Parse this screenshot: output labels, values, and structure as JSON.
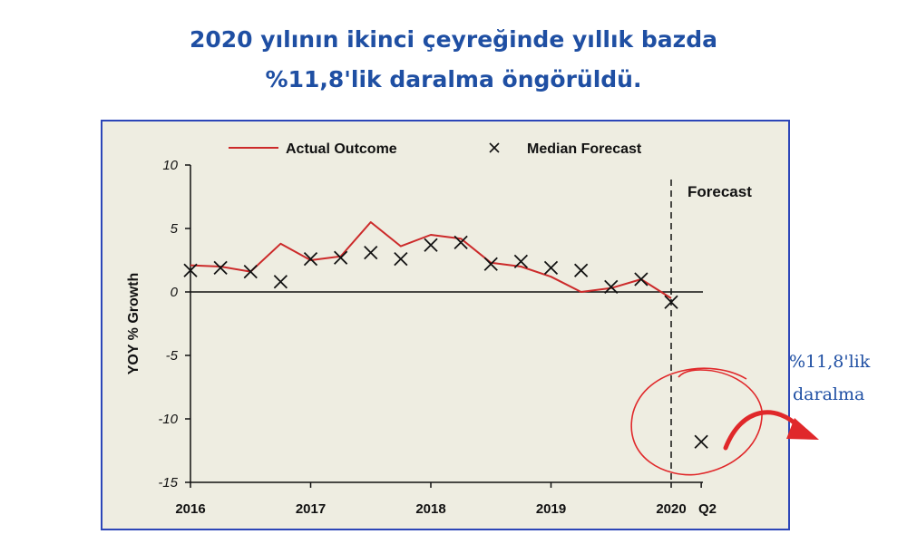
{
  "page": {
    "title_line1": "2020 yılının ikinci çeyreğinde yıllık bazda",
    "title_line2": "%11,8'lik daralma öngörüldü."
  },
  "chart_data": {
    "type": "line",
    "ylabel": "YOY % Growth",
    "ylim": [
      -15,
      10
    ],
    "yticks": [
      10,
      5,
      0,
      -5,
      -10,
      -15
    ],
    "ytick_labels": [
      "10",
      "5",
      "0",
      "-5",
      "-10",
      "-15"
    ],
    "xlim": [
      2016.0,
      2020.35
    ],
    "xtick_values": [
      2016,
      2017,
      2018,
      2019,
      2020,
      2020.25
    ],
    "xtick_labels": [
      "2016",
      "2017",
      "2018",
      "2019",
      "2020",
      "Q2"
    ],
    "grid": false,
    "legend": {
      "position": "top",
      "actual": "Actual Outcome",
      "median": "Median Forecast"
    },
    "forecast_label": "Forecast",
    "forecast_start_x": 2020,
    "series": [
      {
        "name": "Actual Outcome",
        "style": "line",
        "color": "#cc2a2a",
        "x": [
          2016.0,
          2016.25,
          2016.5,
          2016.75,
          2017.0,
          2017.25,
          2017.5,
          2017.75,
          2018.0,
          2018.25,
          2018.5,
          2018.75,
          2019.0,
          2019.25,
          2019.5,
          2019.75,
          2020.0
        ],
        "y": [
          2.1,
          2.0,
          1.6,
          3.8,
          2.5,
          2.8,
          5.5,
          3.6,
          4.5,
          4.2,
          2.3,
          2.0,
          1.2,
          0.0,
          0.3,
          1.0,
          -0.5
        ]
      },
      {
        "name": "Median Forecast",
        "style": "x-marker",
        "color": "#111111",
        "x": [
          2016.0,
          2016.25,
          2016.5,
          2016.75,
          2017.0,
          2017.25,
          2017.5,
          2017.75,
          2018.0,
          2018.25,
          2018.5,
          2018.75,
          2019.0,
          2019.25,
          2019.5,
          2019.75,
          2020.0,
          2020.25
        ],
        "y": [
          1.7,
          1.9,
          1.6,
          0.8,
          2.6,
          2.7,
          3.1,
          2.6,
          3.7,
          3.9,
          2.2,
          2.4,
          1.9,
          1.7,
          0.4,
          1.0,
          -0.8,
          -11.8
        ]
      }
    ],
    "annotation": {
      "text_line1": "%11,8'lik",
      "text_line2": "daralma",
      "color": "#e0282a"
    }
  }
}
